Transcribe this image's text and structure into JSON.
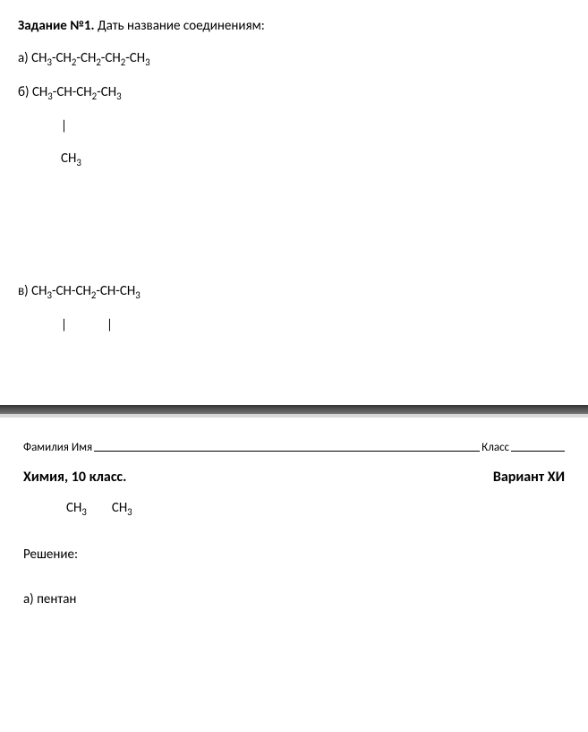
{
  "task": {
    "title_bold": "Задание №1.",
    "title_rest": " Дать название соединениям:",
    "a": {
      "label": "а) ",
      "formula_html": "CH<sub class='sub'>3</sub>-CH<sub class='sub'>2</sub>-CH<sub class='sub'>2</sub>-CH<sub class='sub'>2</sub>-CH<sub class='sub'>3</sub>"
    },
    "b": {
      "label": "б) ",
      "line1_html": "CH<sub class='sub'>3</sub>-CH-CH<sub class='sub'>2</sub>-CH<sub class='sub'>3</sub>",
      "line2": "|",
      "line3_html": "CH<sub class='sub'>3</sub>"
    },
    "v": {
      "label": "в) ",
      "line1_html": "CH<sub class='sub'>3</sub>-CH-CH<sub class='sub'>2</sub>-CH-CH<sub class='sub'>3</sub>",
      "line2_html": "|&nbsp;&nbsp;&nbsp;&nbsp;&nbsp;&nbsp;&nbsp;&nbsp;&nbsp;&nbsp;&nbsp;&nbsp;&nbsp;|"
    }
  },
  "page2": {
    "name_label": "Фамилия Имя",
    "class_label": "Класс",
    "subject": "Химия, 10 класс.",
    "variant": "Вариант ХИ",
    "ch_line_html": "CH<sub class='sub'>3</sub><span class='ch-gap'></span>CH<sub class='sub'>3</sub>",
    "solution_label": "Решение:",
    "answer_a": "а) пентан"
  }
}
